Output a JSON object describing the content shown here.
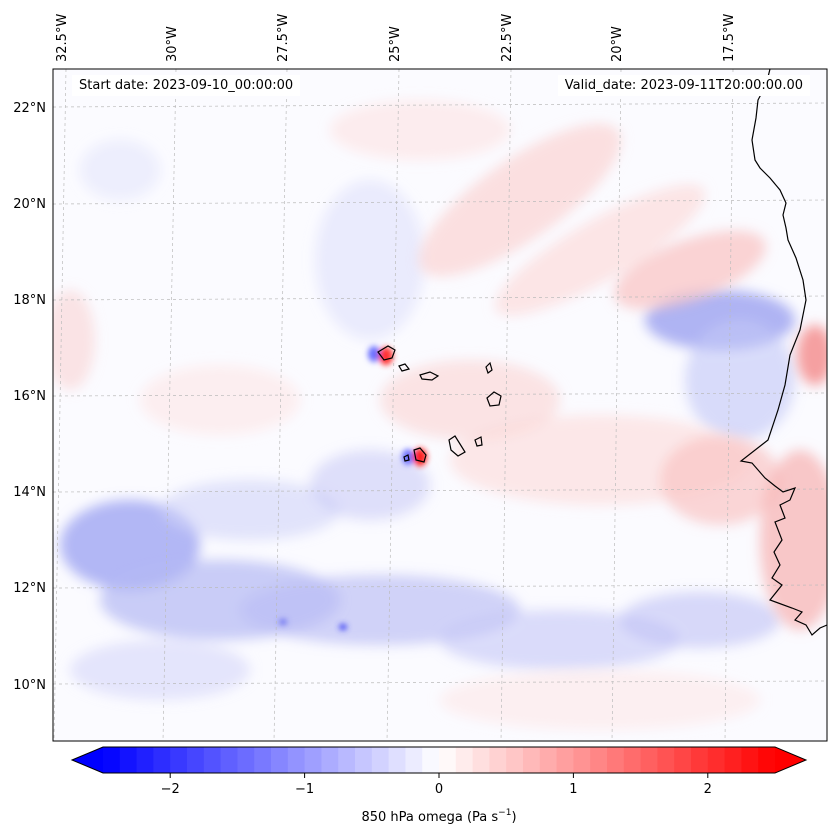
{
  "map": {
    "start_date": "Start date: 2023-09-10_00:00:00",
    "valid_date": "Valid_date: 2023-09-11T20:00:00.00",
    "lon_labels": [
      "32.5°W",
      "30°W",
      "27.5°W",
      "25°W",
      "22.5°W",
      "20°W",
      "17.5°W"
    ],
    "lat_labels": [
      "22°N",
      "20°N",
      "18°N",
      "16°N",
      "14°N",
      "12°N",
      "10°N"
    ],
    "field": "850 hPa omega"
  },
  "colorbar": {
    "tick_labels": [
      "−2",
      "−1",
      "0",
      "1",
      "2"
    ],
    "tick_values": [
      -2,
      -1,
      0,
      1,
      2
    ],
    "vmin": -2.5,
    "vmax": 2.5,
    "label": "850 hPa omega (Pa s",
    "label_exp": "−1",
    "label_end": ")",
    "colors": {
      "neg": "#0000ff",
      "zero": "#ffffff",
      "pos": "#ff0000"
    }
  }
}
